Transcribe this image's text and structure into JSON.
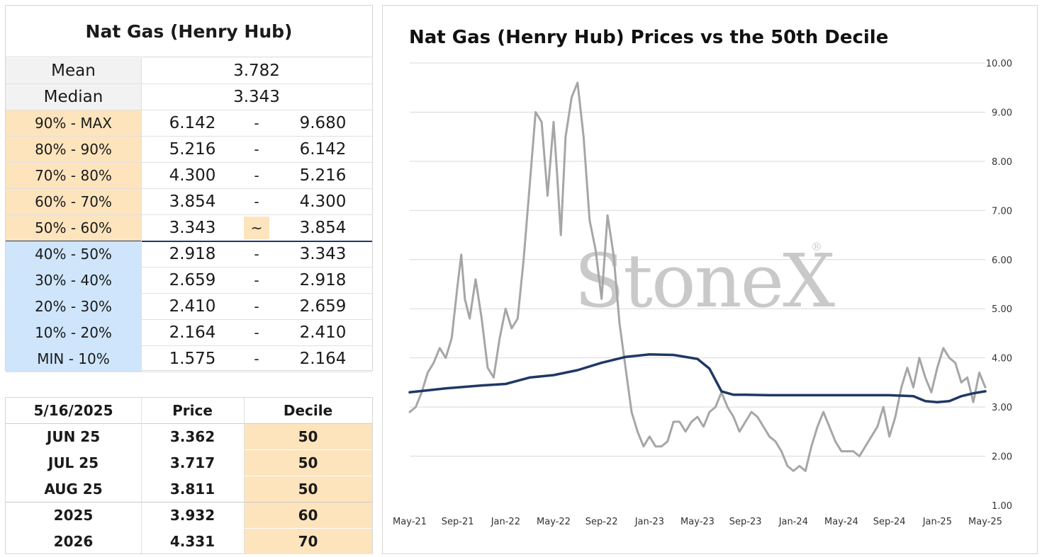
{
  "stats": {
    "title": "Nat Gas (Henry Hub)",
    "mean_label": "Mean",
    "mean_value": "3.782",
    "median_label": "Median",
    "median_value": "3.343",
    "deciles": [
      {
        "label": "90% - MAX",
        "low": "6.142",
        "sep": "-",
        "high": "9.680",
        "color": "#fde4bd"
      },
      {
        "label": "80% - 90%",
        "low": "5.216",
        "sep": "-",
        "high": "6.142",
        "color": "#fde4bd"
      },
      {
        "label": "70% - 80%",
        "low": "4.300",
        "sep": "-",
        "high": "5.216",
        "color": "#fde4bd"
      },
      {
        "label": "60% - 70%",
        "low": "3.854",
        "sep": "-",
        "high": "4.300",
        "color": "#fde4bd"
      },
      {
        "label": "50% - 60%",
        "low": "3.343",
        "sep": "~",
        "high": "3.854",
        "color": "#fde4bd"
      },
      {
        "label": "40% - 50%",
        "low": "2.918",
        "sep": "-",
        "high": "3.343",
        "color": "#cfe5fb"
      },
      {
        "label": "30% - 40%",
        "low": "2.659",
        "sep": "-",
        "high": "2.918",
        "color": "#cfe5fb"
      },
      {
        "label": "20% - 30%",
        "low": "2.410",
        "sep": "-",
        "high": "2.659",
        "color": "#cfe5fb"
      },
      {
        "label": "10% - 20%",
        "low": "2.164",
        "sep": "-",
        "high": "2.410",
        "color": "#cfe5fb"
      },
      {
        "label": "MIN - 10%",
        "low": "1.575",
        "sep": "-",
        "high": "2.164",
        "color": "#cfe5fb"
      }
    ]
  },
  "contracts": {
    "headers": [
      "5/16/2025",
      "Price",
      "Decile"
    ],
    "rows": [
      {
        "name": "JUN 25",
        "price": "3.362",
        "decile": "50"
      },
      {
        "name": "JUL 25",
        "price": "3.717",
        "decile": "50"
      },
      {
        "name": "AUG 25",
        "price": "3.811",
        "decile": "50"
      },
      {
        "name": "2025",
        "price": "3.932",
        "decile": "60"
      },
      {
        "name": "2026",
        "price": "4.331",
        "decile": "70"
      }
    ],
    "decile_color": "#fde4bd"
  },
  "chart_data": {
    "type": "line",
    "title": "Nat Gas (Henry Hub) Prices vs the 50th Decile",
    "watermark": "StoneX",
    "watermark_mark": "®",
    "ylim": [
      1.0,
      10.0
    ],
    "yticks": [
      "1.00",
      "2.00",
      "3.00",
      "4.00",
      "5.00",
      "6.00",
      "7.00",
      "8.00",
      "9.00",
      "10.00"
    ],
    "xticks": [
      "May-21",
      "Sep-21",
      "Jan-22",
      "May-22",
      "Sep-22",
      "Jan-23",
      "May-23",
      "Sep-23",
      "Jan-24",
      "May-24",
      "Sep-24",
      "Jan-25",
      "May-25"
    ],
    "grid": true,
    "series": [
      {
        "name": "Price",
        "color": "#a6a6a6",
        "x_months": [
          0,
          0.5,
          1,
          1.5,
          2,
          2.5,
          3,
          3.5,
          4,
          4.3,
          4.6,
          5,
          5.5,
          6,
          6.5,
          7,
          7.5,
          8,
          8.5,
          9,
          9.5,
          10,
          10.5,
          11,
          11.5,
          12,
          12.3,
          12.6,
          13,
          13.5,
          14,
          14.5,
          15,
          15.5,
          16,
          16.5,
          17,
          17.5,
          18,
          18.5,
          19,
          19.5,
          20,
          20.5,
          21,
          21.5,
          22,
          22.5,
          23,
          23.5,
          24,
          24.5,
          25,
          25.5,
          26,
          26.5,
          27,
          27.5,
          28,
          28.5,
          29,
          29.5,
          30,
          30.5,
          31,
          31.5,
          32,
          32.5,
          33,
          33.5,
          34,
          34.5,
          35,
          35.5,
          36,
          36.5,
          37,
          37.5,
          38,
          38.5,
          39,
          39.5,
          40,
          40.5,
          41,
          41.5,
          42,
          42.5,
          43,
          43.5,
          44,
          44.5,
          45,
          45.5,
          46,
          46.5,
          47,
          47.5,
          48
        ],
        "values": [
          2.9,
          3.0,
          3.3,
          3.7,
          3.9,
          4.2,
          4.0,
          4.4,
          5.5,
          6.1,
          5.2,
          4.8,
          5.6,
          4.8,
          3.8,
          3.6,
          4.4,
          5.0,
          4.6,
          4.8,
          6.0,
          7.5,
          9.0,
          8.8,
          7.3,
          8.8,
          7.7,
          6.5,
          8.5,
          9.3,
          9.6,
          8.5,
          6.8,
          6.2,
          5.2,
          6.9,
          6.1,
          4.7,
          3.8,
          2.9,
          2.5,
          2.2,
          2.4,
          2.2,
          2.2,
          2.3,
          2.7,
          2.7,
          2.5,
          2.7,
          2.8,
          2.6,
          2.9,
          3.0,
          3.3,
          3.0,
          2.8,
          2.5,
          2.7,
          2.9,
          2.8,
          2.6,
          2.4,
          2.3,
          2.1,
          1.8,
          1.7,
          1.8,
          1.7,
          2.2,
          2.6,
          2.9,
          2.6,
          2.3,
          2.1,
          2.1,
          2.1,
          2.0,
          2.2,
          2.4,
          2.6,
          3.0,
          2.4,
          2.8,
          3.4,
          3.8,
          3.4,
          4.0,
          3.6,
          3.3,
          3.8,
          4.2,
          4.0,
          3.9,
          3.5,
          3.6,
          3.1,
          3.7,
          3.4
        ]
      },
      {
        "name": "50th Decile",
        "color": "#1f3864",
        "x_months": [
          0,
          3,
          6,
          8,
          10,
          12,
          14,
          16,
          18,
          20,
          22,
          24,
          25,
          26,
          27,
          28,
          30,
          32,
          34,
          36,
          38,
          40,
          42,
          43,
          44,
          45,
          46,
          47,
          48
        ],
        "values": [
          3.3,
          3.38,
          3.44,
          3.47,
          3.6,
          3.65,
          3.75,
          3.9,
          4.02,
          4.07,
          4.06,
          3.98,
          3.78,
          3.32,
          3.25,
          3.25,
          3.24,
          3.24,
          3.24,
          3.24,
          3.24,
          3.24,
          3.22,
          3.12,
          3.1,
          3.12,
          3.22,
          3.28,
          3.32
        ]
      }
    ]
  }
}
